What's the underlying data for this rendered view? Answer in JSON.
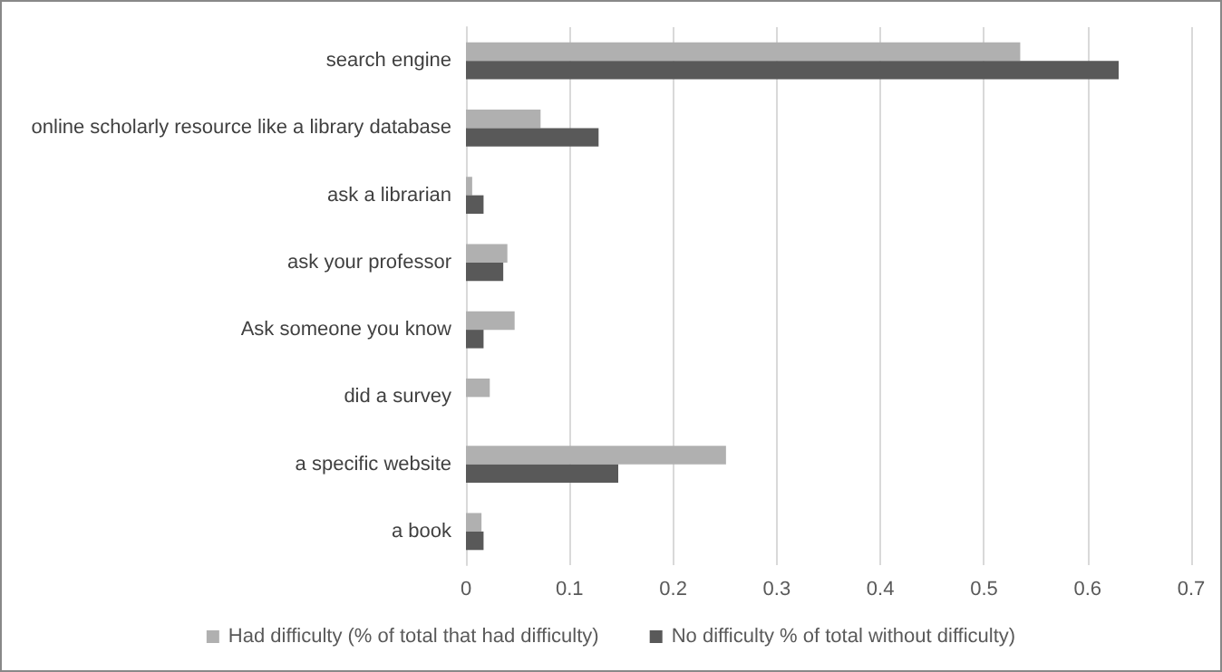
{
  "chart_data": {
    "type": "bar",
    "orientation": "horizontal",
    "categories": [
      "search engine",
      "online scholarly resource like a library database",
      "ask a librarian",
      "ask your professor",
      "Ask someone you know",
      "did a survey",
      "a specific website",
      "a book"
    ],
    "series": [
      {
        "name": "Had difficulty (% of total that had difficulty)",
        "color": "#b0b0b0",
        "values": [
          0.535,
          0.072,
          0.006,
          0.04,
          0.047,
          0.023,
          0.251,
          0.015
        ]
      },
      {
        "name": "No difficulty % of total without difficulty)",
        "color": "#595959",
        "values": [
          0.63,
          0.128,
          0.017,
          0.036,
          0.017,
          0,
          0.147,
          0.017
        ]
      }
    ],
    "xlim": [
      0,
      0.7
    ],
    "xticks": [
      0,
      0.1,
      0.2,
      0.3,
      0.4,
      0.5,
      0.6,
      0.7
    ],
    "grid": "x",
    "legend": "bottom"
  }
}
